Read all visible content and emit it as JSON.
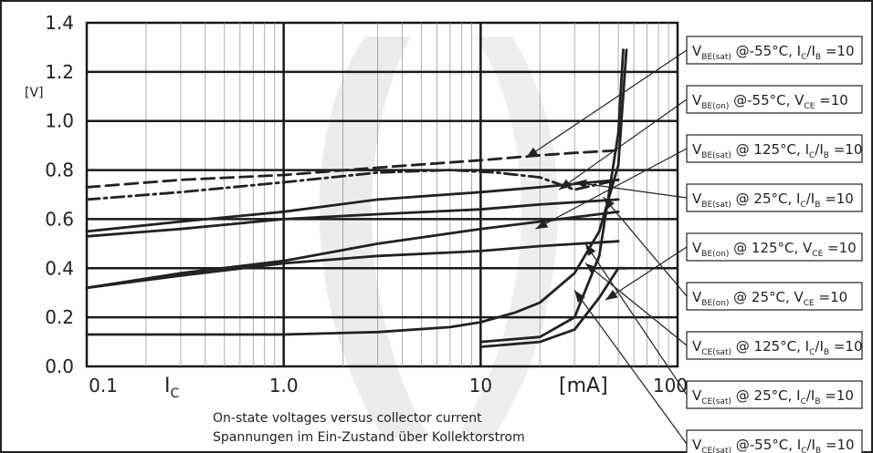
{
  "chart_data": {
    "type": "line",
    "x_scale": "log",
    "xlim": [
      0.1,
      100
    ],
    "ylim": [
      0.0,
      1.4
    ],
    "grid": true,
    "y_ticks": [
      "0.0",
      "0.2",
      "0.4",
      "0.6",
      "0.8",
      "1.0",
      "1.2",
      "1.4"
    ],
    "y_unit": "[V]",
    "x_ticks": [
      "0.1",
      "1.0",
      "10",
      "100"
    ],
    "x_label": "I",
    "x_label_sub": "C",
    "x_unit": "[mA]",
    "caption": [
      "On-state voltages versus collector current",
      "Spannungen im Ein-Zustand über Kollektorstrom"
    ],
    "series": [
      {
        "label_main": "V",
        "label_sub": "BE(sat)",
        "label_rest": " @-55°C, I",
        "label_sub2": "C",
        "label_rest2": "/I",
        "label_sub3": "B",
        "label_tail": " =10",
        "style": "dashed",
        "x": [
          0.1,
          0.3,
          1.0,
          3.0,
          10,
          20,
          30,
          50
        ],
        "y": [
          0.73,
          0.76,
          0.78,
          0.81,
          0.84,
          0.86,
          0.87,
          0.88
        ],
        "arrow_to": [
          17,
          0.85
        ]
      },
      {
        "label_main": "V",
        "label_sub": "BE(on)",
        "label_rest": " @-55°C, V",
        "label_sub2": "CE",
        "label_rest2": " =10",
        "label_sub3": "",
        "label_tail": "",
        "style": "solid",
        "x": [
          10,
          20,
          30,
          40,
          50,
          53
        ],
        "y": [
          0.1,
          0.12,
          0.2,
          0.45,
          0.95,
          1.29
        ],
        "arrow_to": [
          25,
          0.72
        ]
      },
      {
        "label_main": "V",
        "label_sub": "BE(sat)",
        "label_rest": " @ 125°C, I",
        "label_sub2": "C",
        "label_rest2": "/I",
        "label_sub3": "B",
        "label_tail": " =10",
        "style": "solid",
        "x": [
          0.1,
          0.3,
          1.0,
          3.0,
          10,
          20,
          50
        ],
        "y": [
          0.53,
          0.56,
          0.6,
          0.62,
          0.64,
          0.66,
          0.68
        ],
        "arrow_to": [
          19,
          0.56
        ]
      },
      {
        "label_main": "V",
        "label_sub": "BE(sat)",
        "label_rest": " @ 25°C, I",
        "label_sub2": "C",
        "label_rest2": "/I",
        "label_sub3": "B",
        "label_tail": " =10",
        "style": "solid",
        "x": [
          0.1,
          0.3,
          1.0,
          3.0,
          10,
          20,
          50
        ],
        "y": [
          0.55,
          0.59,
          0.63,
          0.68,
          0.71,
          0.73,
          0.76
        ],
        "arrow_to": [
          30,
          0.75
        ]
      },
      {
        "label_main": "V",
        "label_sub": "BE(on)",
        "label_rest": " @ 125°C, V",
        "label_sub2": "CE",
        "label_rest2": " =10",
        "label_sub3": "",
        "label_tail": "",
        "style": "solid",
        "x": [
          10,
          20,
          30,
          40,
          50,
          55
        ],
        "y": [
          0.08,
          0.1,
          0.15,
          0.28,
          0.4,
          0.4
        ],
        "arrow_to": [
          43,
          0.27
        ]
      },
      {
        "label_main": "V",
        "label_sub": "BE(on)",
        "label_rest": " @ 25°C, V",
        "label_sub2": "CE",
        "label_rest2": " =10",
        "label_sub3": "",
        "label_tail": "",
        "style": "dashdot",
        "x": [
          0.1,
          0.3,
          1.0,
          3.0,
          7.0,
          12,
          20,
          30,
          50
        ],
        "y": [
          0.68,
          0.71,
          0.75,
          0.79,
          0.8,
          0.79,
          0.77,
          0.72,
          0.76
        ],
        "arrow_to": [
          42,
          0.69
        ]
      },
      {
        "label_main": "V",
        "label_sub": "CE(sat)",
        "label_rest": " @ 125°C, I",
        "label_sub2": "C",
        "label_rest2": "/I",
        "label_sub3": "B",
        "label_tail": " =10",
        "style": "solid",
        "x": [
          0.1,
          0.3,
          1.0,
          3.0,
          10,
          20,
          50
        ],
        "y": [
          0.32,
          0.37,
          0.42,
          0.45,
          0.47,
          0.49,
          0.51
        ],
        "arrow_to": [
          34,
          0.42
        ]
      },
      {
        "label_main": "V",
        "label_sub": "CE(sat)",
        "label_rest": " @ 25°C, I",
        "label_sub2": "C",
        "label_rest2": "/I",
        "label_sub3": "B",
        "label_tail": " =10",
        "style": "solid",
        "x": [
          0.1,
          0.3,
          1.0,
          3.0,
          10,
          20,
          50
        ],
        "y": [
          0.32,
          0.38,
          0.43,
          0.5,
          0.56,
          0.59,
          0.63
        ],
        "arrow_to": [
          34,
          0.5
        ]
      },
      {
        "label_main": "V",
        "label_sub": "CE(sat)",
        "label_rest": " @-55°C, I",
        "label_sub2": "C",
        "label_rest2": "/I",
        "label_sub3": "B",
        "label_tail": " =10",
        "style": "solid",
        "x": [
          0.1,
          1.0,
          3.0,
          7.0,
          10,
          15,
          20,
          30,
          40,
          50,
          55
        ],
        "y": [
          0.13,
          0.13,
          0.14,
          0.16,
          0.18,
          0.22,
          0.26,
          0.38,
          0.55,
          0.82,
          1.29
        ],
        "arrow_to": [
          30,
          0.31
        ]
      }
    ]
  }
}
